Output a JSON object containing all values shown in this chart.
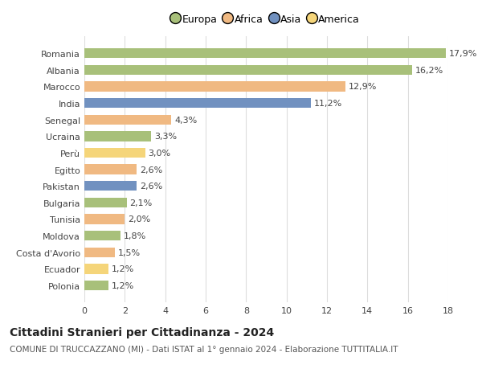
{
  "countries": [
    "Romania",
    "Albania",
    "Marocco",
    "India",
    "Senegal",
    "Ucraina",
    "Perù",
    "Egitto",
    "Pakistan",
    "Bulgaria",
    "Tunisia",
    "Moldova",
    "Costa d'Avorio",
    "Ecuador",
    "Polonia"
  ],
  "values": [
    17.9,
    16.2,
    12.9,
    11.2,
    4.3,
    3.3,
    3.0,
    2.6,
    2.6,
    2.1,
    2.0,
    1.8,
    1.5,
    1.2,
    1.2
  ],
  "labels": [
    "17,9%",
    "16,2%",
    "12,9%",
    "11,2%",
    "4,3%",
    "3,3%",
    "3,0%",
    "2,6%",
    "2,6%",
    "2,1%",
    "2,0%",
    "1,8%",
    "1,5%",
    "1,2%",
    "1,2%"
  ],
  "colors": [
    "#a8c07a",
    "#a8c07a",
    "#f0b982",
    "#7191c0",
    "#f0b982",
    "#a8c07a",
    "#f5d57a",
    "#f0b982",
    "#7191c0",
    "#a8c07a",
    "#f0b982",
    "#a8c07a",
    "#f0b982",
    "#f5d57a",
    "#a8c07a"
  ],
  "continent_colors": {
    "Europa": "#a8c07a",
    "Africa": "#f0b982",
    "Asia": "#7191c0",
    "America": "#f5d57a"
  },
  "xlim": [
    0,
    18
  ],
  "xticks": [
    0,
    2,
    4,
    6,
    8,
    10,
    12,
    14,
    16,
    18
  ],
  "title": "Cittadini Stranieri per Cittadinanza - 2024",
  "subtitle": "COMUNE DI TRUCCAZZANO (MI) - Dati ISTAT al 1° gennaio 2024 - Elaborazione TUTTITALIA.IT",
  "background_color": "#ffffff",
  "grid_color": "#dddddd",
  "bar_height": 0.6,
  "label_fontsize": 8,
  "ytick_fontsize": 8,
  "xtick_fontsize": 8,
  "title_fontsize": 10,
  "subtitle_fontsize": 7.5
}
